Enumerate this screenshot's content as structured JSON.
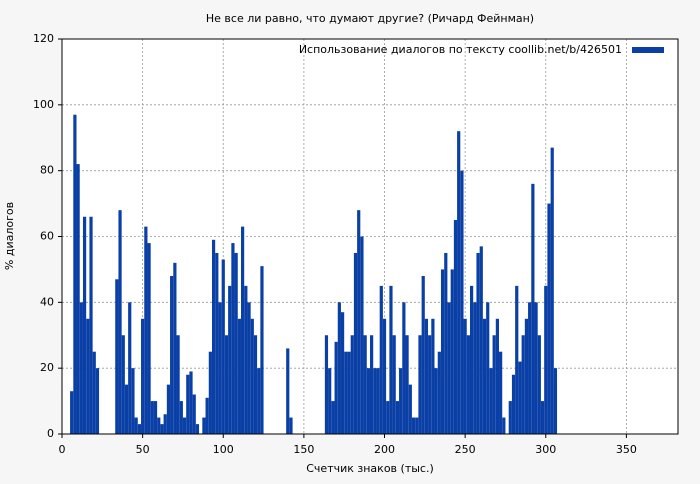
{
  "chart_data": {
    "type": "bar",
    "title": "Не все ли равно, что думают другие? (Ричард Фейнман)",
    "x_label": "Счетчик знаков (тыс.)",
    "y_label": "% диалогов",
    "legend": "upper right",
    "grid": true,
    "xlim": [
      0,
      382
    ],
    "xticks": [
      0,
      50,
      100,
      150,
      200,
      250,
      300,
      350
    ],
    "ylim": [
      0,
      120
    ],
    "yticks": [
      0,
      20,
      40,
      60,
      80,
      100,
      120
    ],
    "x": [
      6,
      8,
      10,
      12,
      14,
      16,
      18,
      20,
      22,
      24,
      26,
      28,
      30,
      32,
      34,
      36,
      38,
      40,
      42,
      44,
      46,
      48,
      50,
      52,
      54,
      56,
      58,
      60,
      62,
      64,
      66,
      68,
      70,
      72,
      74,
      76,
      78,
      80,
      82,
      84,
      86,
      88,
      90,
      92,
      94,
      96,
      98,
      100,
      102,
      104,
      106,
      108,
      110,
      112,
      114,
      116,
      118,
      120,
      122,
      124,
      126,
      128,
      130,
      132,
      134,
      136,
      138,
      140,
      142,
      144,
      146,
      148,
      150,
      152,
      154,
      156,
      158,
      160,
      162,
      164,
      166,
      168,
      170,
      172,
      174,
      176,
      178,
      180,
      182,
      184,
      186,
      188,
      190,
      192,
      194,
      196,
      198,
      200,
      202,
      204,
      206,
      208,
      210,
      212,
      214,
      216,
      218,
      220,
      222,
      224,
      226,
      228,
      230,
      232,
      234,
      236,
      238,
      240,
      242,
      244,
      246,
      248,
      250,
      252,
      254,
      256,
      258,
      260,
      262,
      264,
      266,
      268,
      270,
      272,
      274,
      276,
      278,
      280,
      282,
      284,
      286,
      288,
      290,
      292,
      294,
      296,
      298,
      300,
      302,
      304,
      306
    ],
    "series": [
      {
        "name": "Использование диалогов по тексту  coollib.net/b/426501",
        "color": "#0a3fa6",
        "values": [
          13,
          97,
          82,
          40,
          66,
          35,
          66,
          25,
          20,
          0,
          0,
          0,
          0,
          0,
          47,
          68,
          30,
          15,
          40,
          20,
          5,
          3,
          35,
          63,
          58,
          10,
          10,
          5,
          3,
          6,
          15,
          48,
          52,
          30,
          10,
          5,
          18,
          19,
          12,
          3,
          0,
          5,
          11,
          25,
          59,
          55,
          40,
          53,
          30,
          45,
          58,
          55,
          35,
          63,
          45,
          40,
          35,
          30,
          20,
          51,
          0,
          0,
          0,
          0,
          0,
          0,
          0,
          26,
          5,
          0,
          0,
          0,
          0,
          0,
          0,
          0,
          0,
          0,
          0,
          30,
          20,
          10,
          28,
          40,
          37,
          25,
          25,
          30,
          55,
          68,
          60,
          30,
          20,
          30,
          20,
          20,
          45,
          35,
          10,
          45,
          30,
          10,
          20,
          40,
          30,
          15,
          5,
          5,
          30,
          48,
          35,
          30,
          35,
          20,
          25,
          50,
          55,
          40,
          50,
          65,
          92,
          80,
          35,
          30,
          45,
          40,
          55,
          57,
          35,
          40,
          20,
          30,
          35,
          25,
          5,
          0,
          10,
          18,
          45,
          22,
          30,
          35,
          40,
          76,
          40,
          30,
          10,
          45,
          70,
          87,
          20
        ]
      }
    ]
  }
}
